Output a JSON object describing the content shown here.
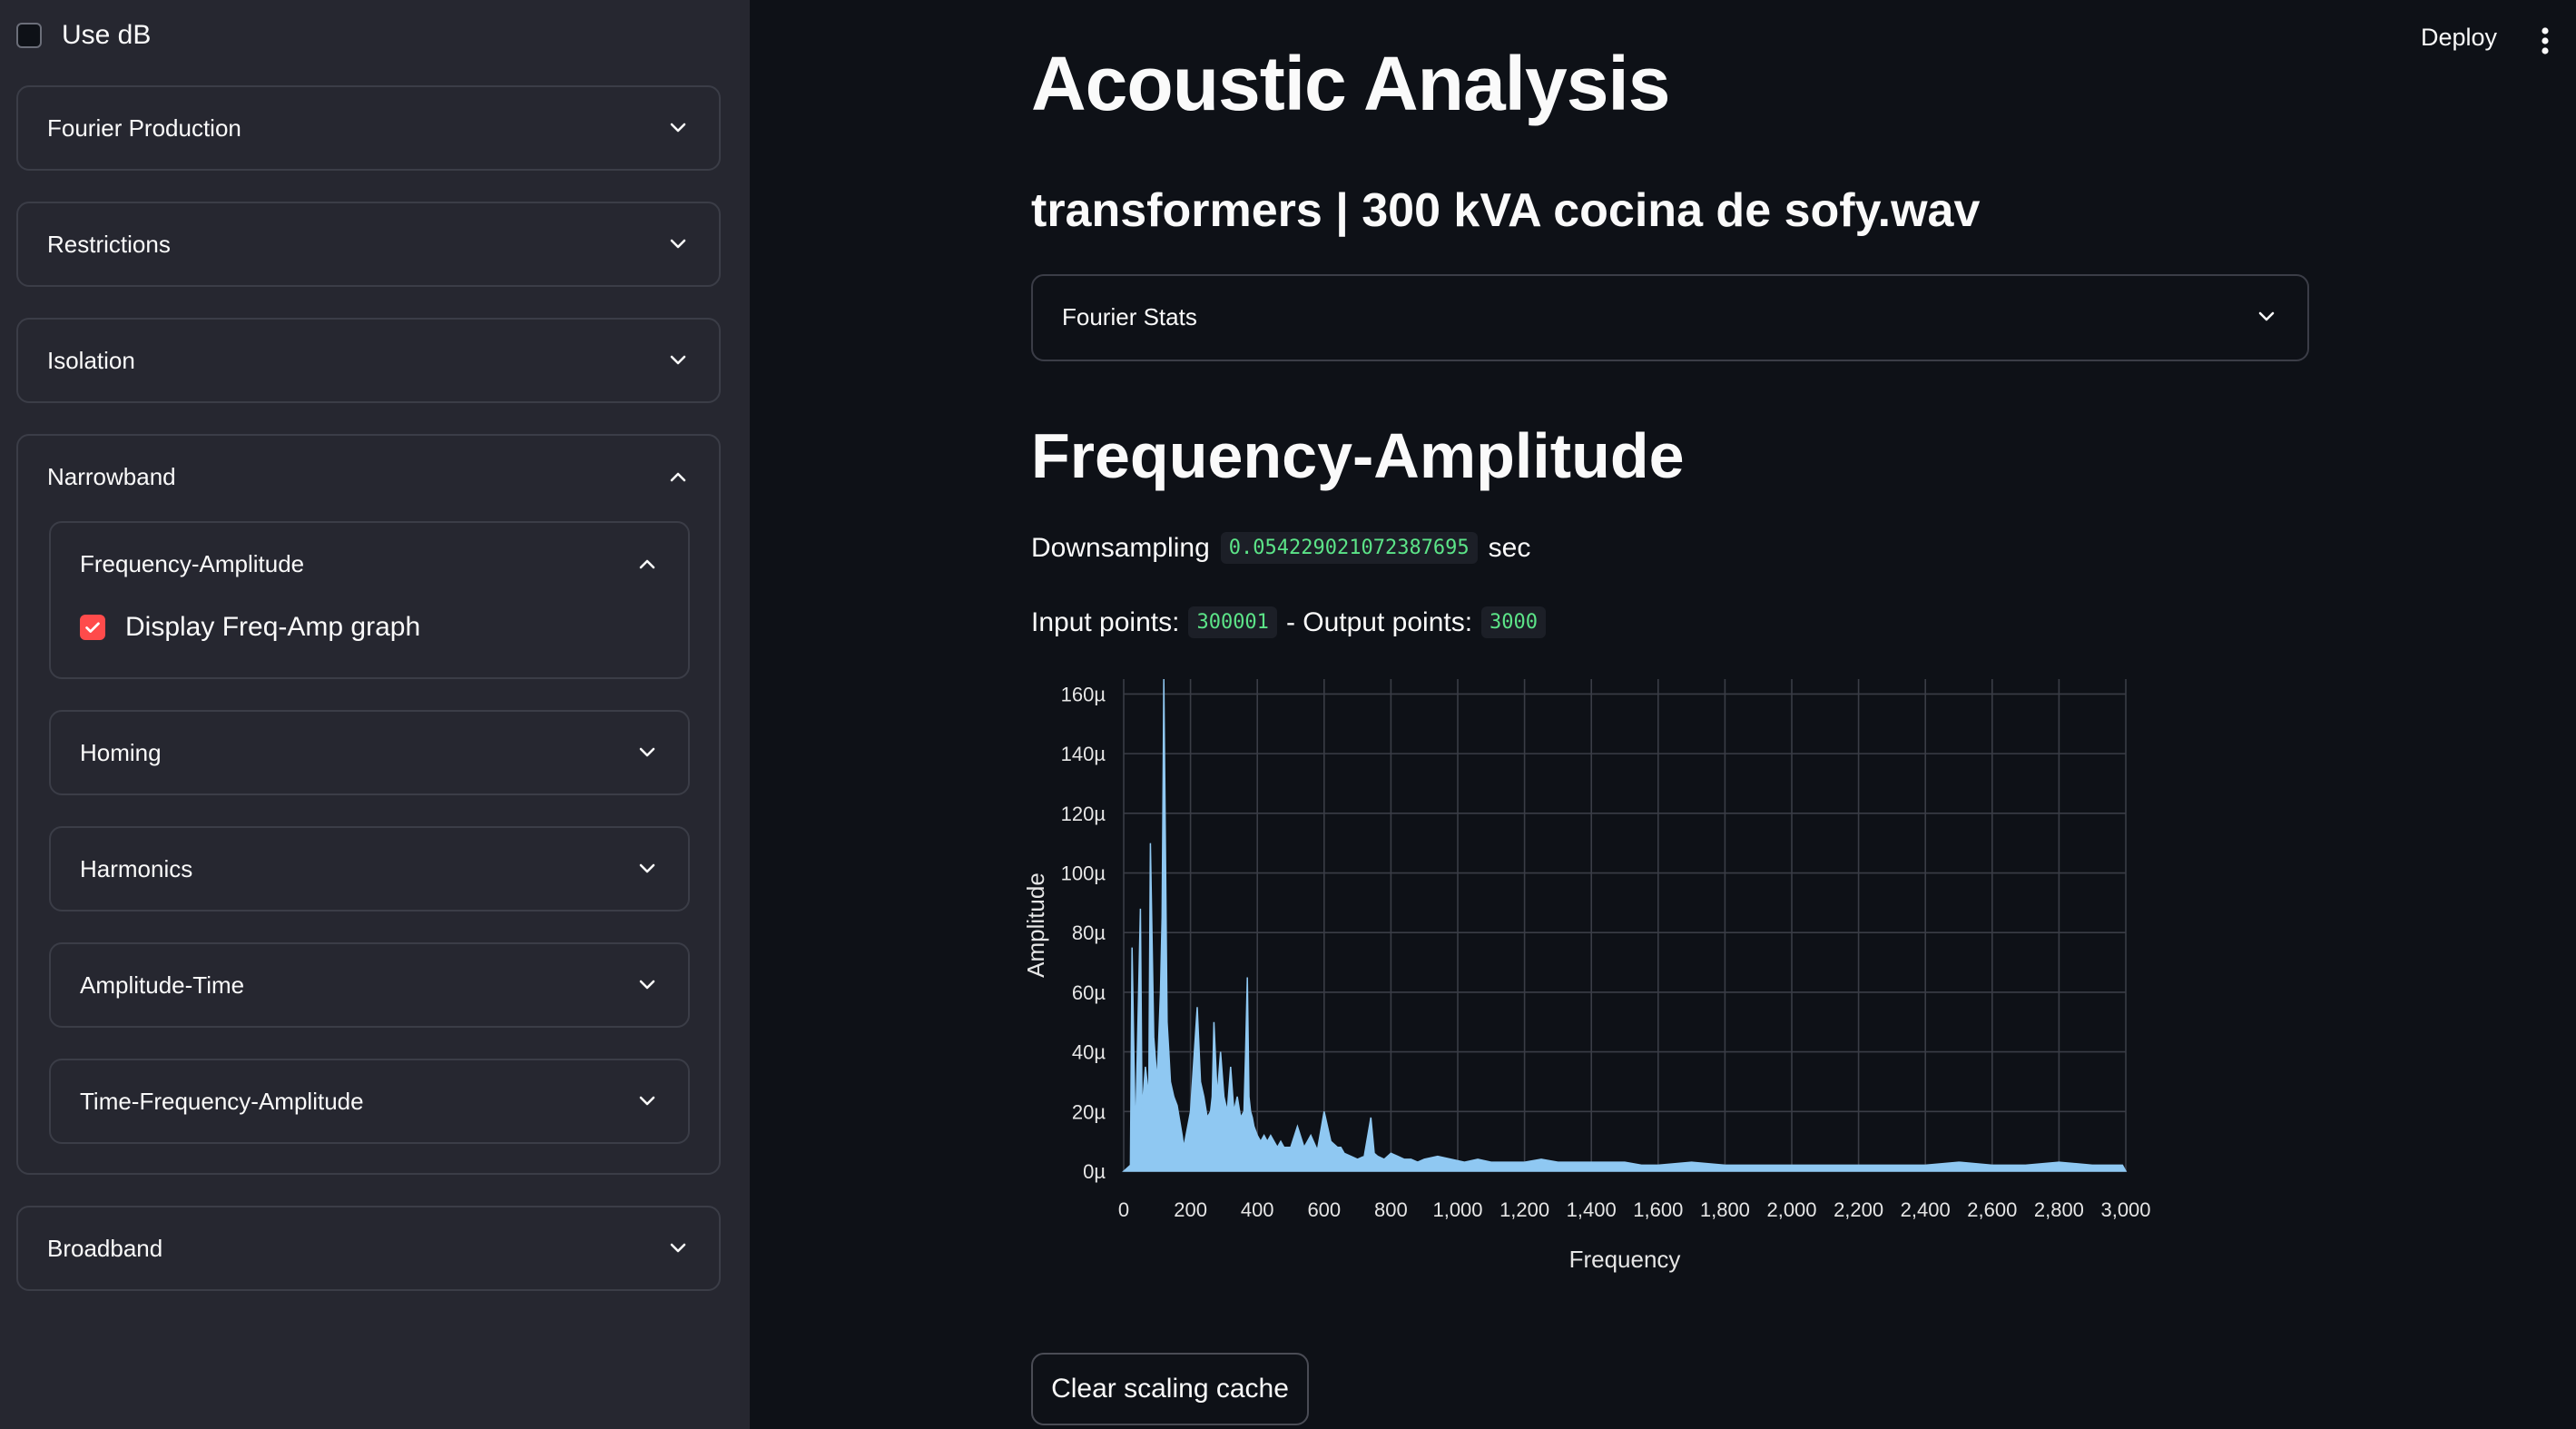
{
  "sidebar": {
    "use_db": {
      "label": "Use dB",
      "checked": false
    },
    "sections": {
      "fourier_production": "Fourier Production",
      "restrictions": "Restrictions",
      "isolation": "Isolation",
      "narrowband": "Narrowband",
      "broadband": "Broadband"
    },
    "narrowband_items": {
      "freq_amp": "Frequency-Amplitude",
      "display_graph": {
        "label": "Display Freq-Amp graph",
        "checked": true
      },
      "homing": "Homing",
      "harmonics": "Harmonics",
      "amplitude_time": "Amplitude-Time",
      "time_freq_amp": "Time-Frequency-Amplitude"
    }
  },
  "header": {
    "deploy": "Deploy",
    "menu_icon": "kebab-menu-icon"
  },
  "main": {
    "title": "Acoustic Analysis",
    "file_heading": "transformers | 300 kVA cocina de sofy.wav",
    "fourier_stats": "Fourier Stats",
    "section_heading": "Frequency-Amplitude",
    "downsampling_label": "Downsampling",
    "downsampling_value": "0.054229021072387695",
    "downsampling_unit": "sec",
    "input_points_label": "Input points:",
    "input_points_value": "300001",
    "output_points_label": "- Output points:",
    "output_points_value": "3000",
    "clear_button": "Clear scaling cache"
  },
  "colors": {
    "accent": "#ff4b4b",
    "series": "#8fc8f2",
    "code": "#5ce488"
  },
  "chart_data": {
    "type": "area",
    "xlabel": "Frequency",
    "ylabel": "Amplitude",
    "xlim": [
      0,
      3000
    ],
    "ylim": [
      0,
      165
    ],
    "y_unit_suffix": "µ",
    "xticks": [
      0,
      200,
      400,
      600,
      800,
      1000,
      1200,
      1400,
      1600,
      1800,
      2000,
      2200,
      2400,
      2600,
      2800,
      3000
    ],
    "xtick_labels": [
      "0",
      "200",
      "400",
      "600",
      "800",
      "1,000",
      "1,200",
      "1,400",
      "1,600",
      "1,800",
      "2,000",
      "2,200",
      "2,400",
      "2,600",
      "2,800",
      "3,000"
    ],
    "yticks": [
      0,
      20,
      40,
      60,
      80,
      100,
      120,
      140,
      160
    ],
    "ytick_labels": [
      "0µ",
      "20µ",
      "40µ",
      "60µ",
      "80µ",
      "100µ",
      "120µ",
      "140µ",
      "160µ"
    ],
    "grid": true,
    "series": [
      {
        "color": "#8fc8f2",
        "x": [
          0,
          20,
          25,
          35,
          50,
          55,
          65,
          75,
          80,
          90,
          100,
          110,
          115,
          120,
          130,
          135,
          140,
          150,
          160,
          175,
          180,
          200,
          220,
          230,
          240,
          250,
          260,
          265,
          270,
          280,
          290,
          300,
          310,
          320,
          330,
          340,
          350,
          360,
          365,
          370,
          375,
          380,
          385,
          390,
          400,
          410,
          420,
          430,
          440,
          450,
          460,
          470,
          480,
          500,
          520,
          540,
          550,
          560,
          580,
          600,
          620,
          640,
          650,
          660,
          680,
          700,
          720,
          740,
          750,
          760,
          780,
          800,
          820,
          840,
          860,
          880,
          900,
          940,
          980,
          1020,
          1060,
          1100,
          1150,
          1200,
          1250,
          1300,
          1350,
          1400,
          1450,
          1500,
          1550,
          1600,
          1700,
          1800,
          1900,
          2000,
          2100,
          2200,
          2300,
          2400,
          2500,
          2600,
          2700,
          2800,
          2900,
          2990,
          3000
        ],
        "y": [
          0,
          2,
          75,
          10,
          88,
          20,
          35,
          25,
          110,
          45,
          30,
          60,
          85,
          165,
          50,
          40,
          30,
          25,
          22,
          12,
          8,
          20,
          55,
          30,
          25,
          18,
          20,
          25,
          50,
          25,
          40,
          25,
          20,
          35,
          20,
          25,
          18,
          20,
          40,
          65,
          25,
          20,
          18,
          15,
          12,
          10,
          12,
          10,
          12,
          10,
          8,
          10,
          8,
          8,
          15,
          8,
          10,
          12,
          7,
          20,
          10,
          8,
          8,
          6,
          5,
          4,
          5,
          18,
          6,
          5,
          4,
          6,
          5,
          4,
          4,
          3,
          4,
          5,
          4,
          3,
          4,
          3,
          3,
          3,
          4,
          3,
          3,
          3,
          3,
          3,
          2,
          2,
          3,
          2,
          2,
          2,
          2,
          2,
          2,
          2,
          3,
          2,
          2,
          3,
          2,
          2,
          0
        ]
      }
    ]
  }
}
